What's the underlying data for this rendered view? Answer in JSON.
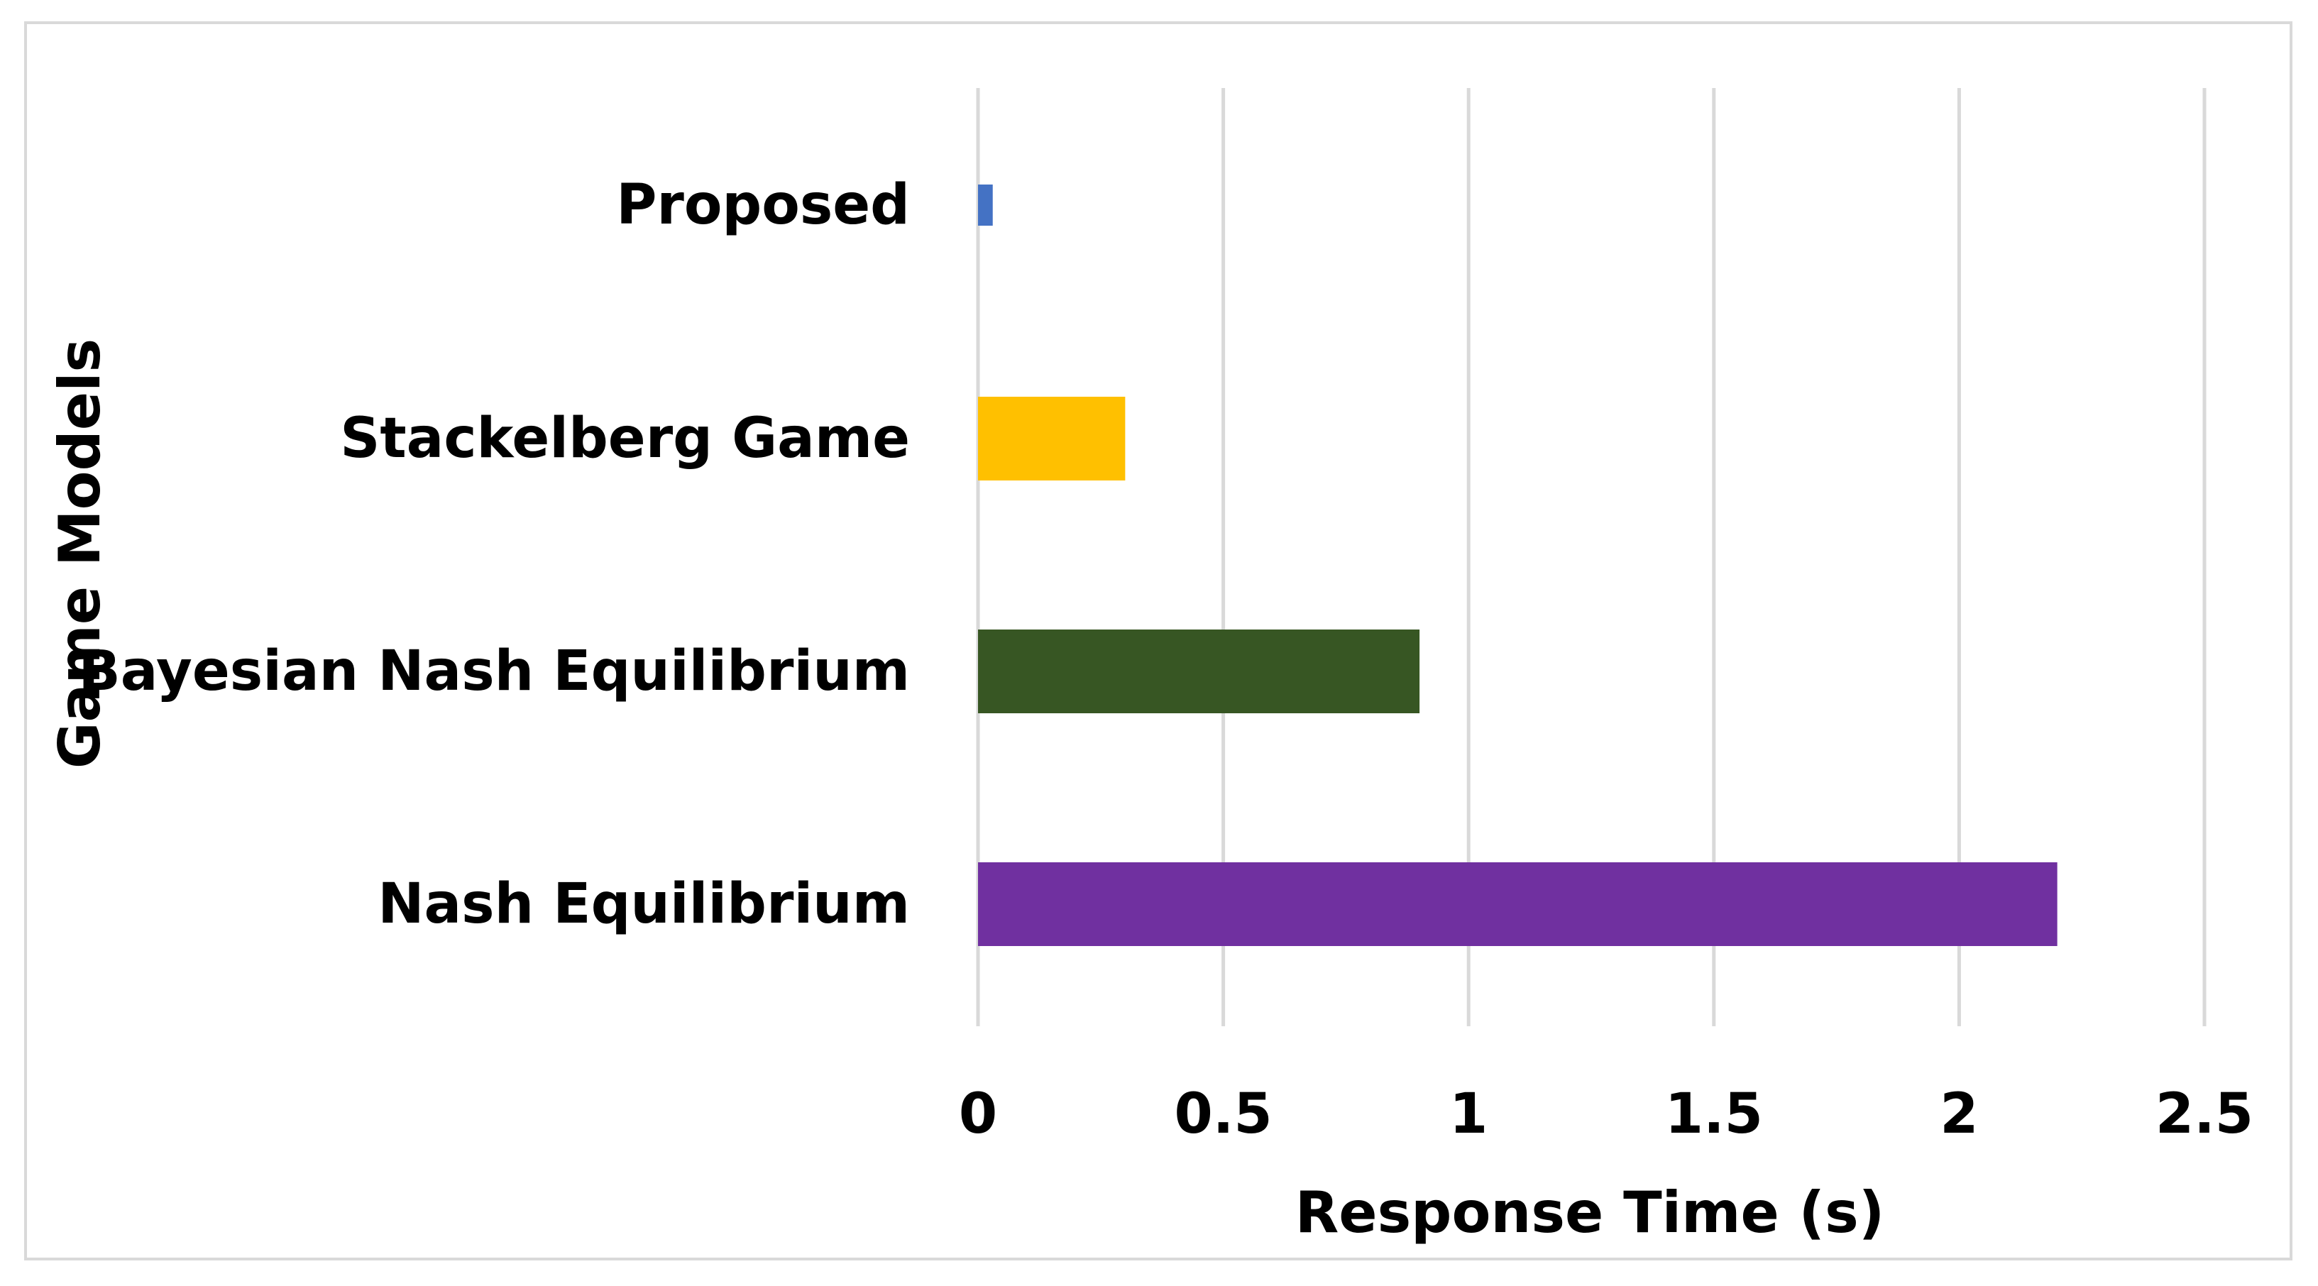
{
  "chart_data": {
    "type": "bar",
    "orientation": "horizontal",
    "categories": [
      "Proposed",
      "Stackelberg Game",
      "Bayesian Nash Equilibrium",
      "Nash Equilibrium"
    ],
    "values": [
      0.03,
      0.3,
      0.9,
      2.2
    ],
    "colors": [
      "#4472c4",
      "#ffc000",
      "#375623",
      "#7030a0"
    ],
    "xlabel": "Response Time (s)",
    "ylabel": "Game Models",
    "xlim": [
      0,
      2.5
    ],
    "xticks": [
      "0",
      "0.5",
      "1",
      "1.5",
      "2",
      "2.5"
    ],
    "grid": true,
    "legend": false
  }
}
